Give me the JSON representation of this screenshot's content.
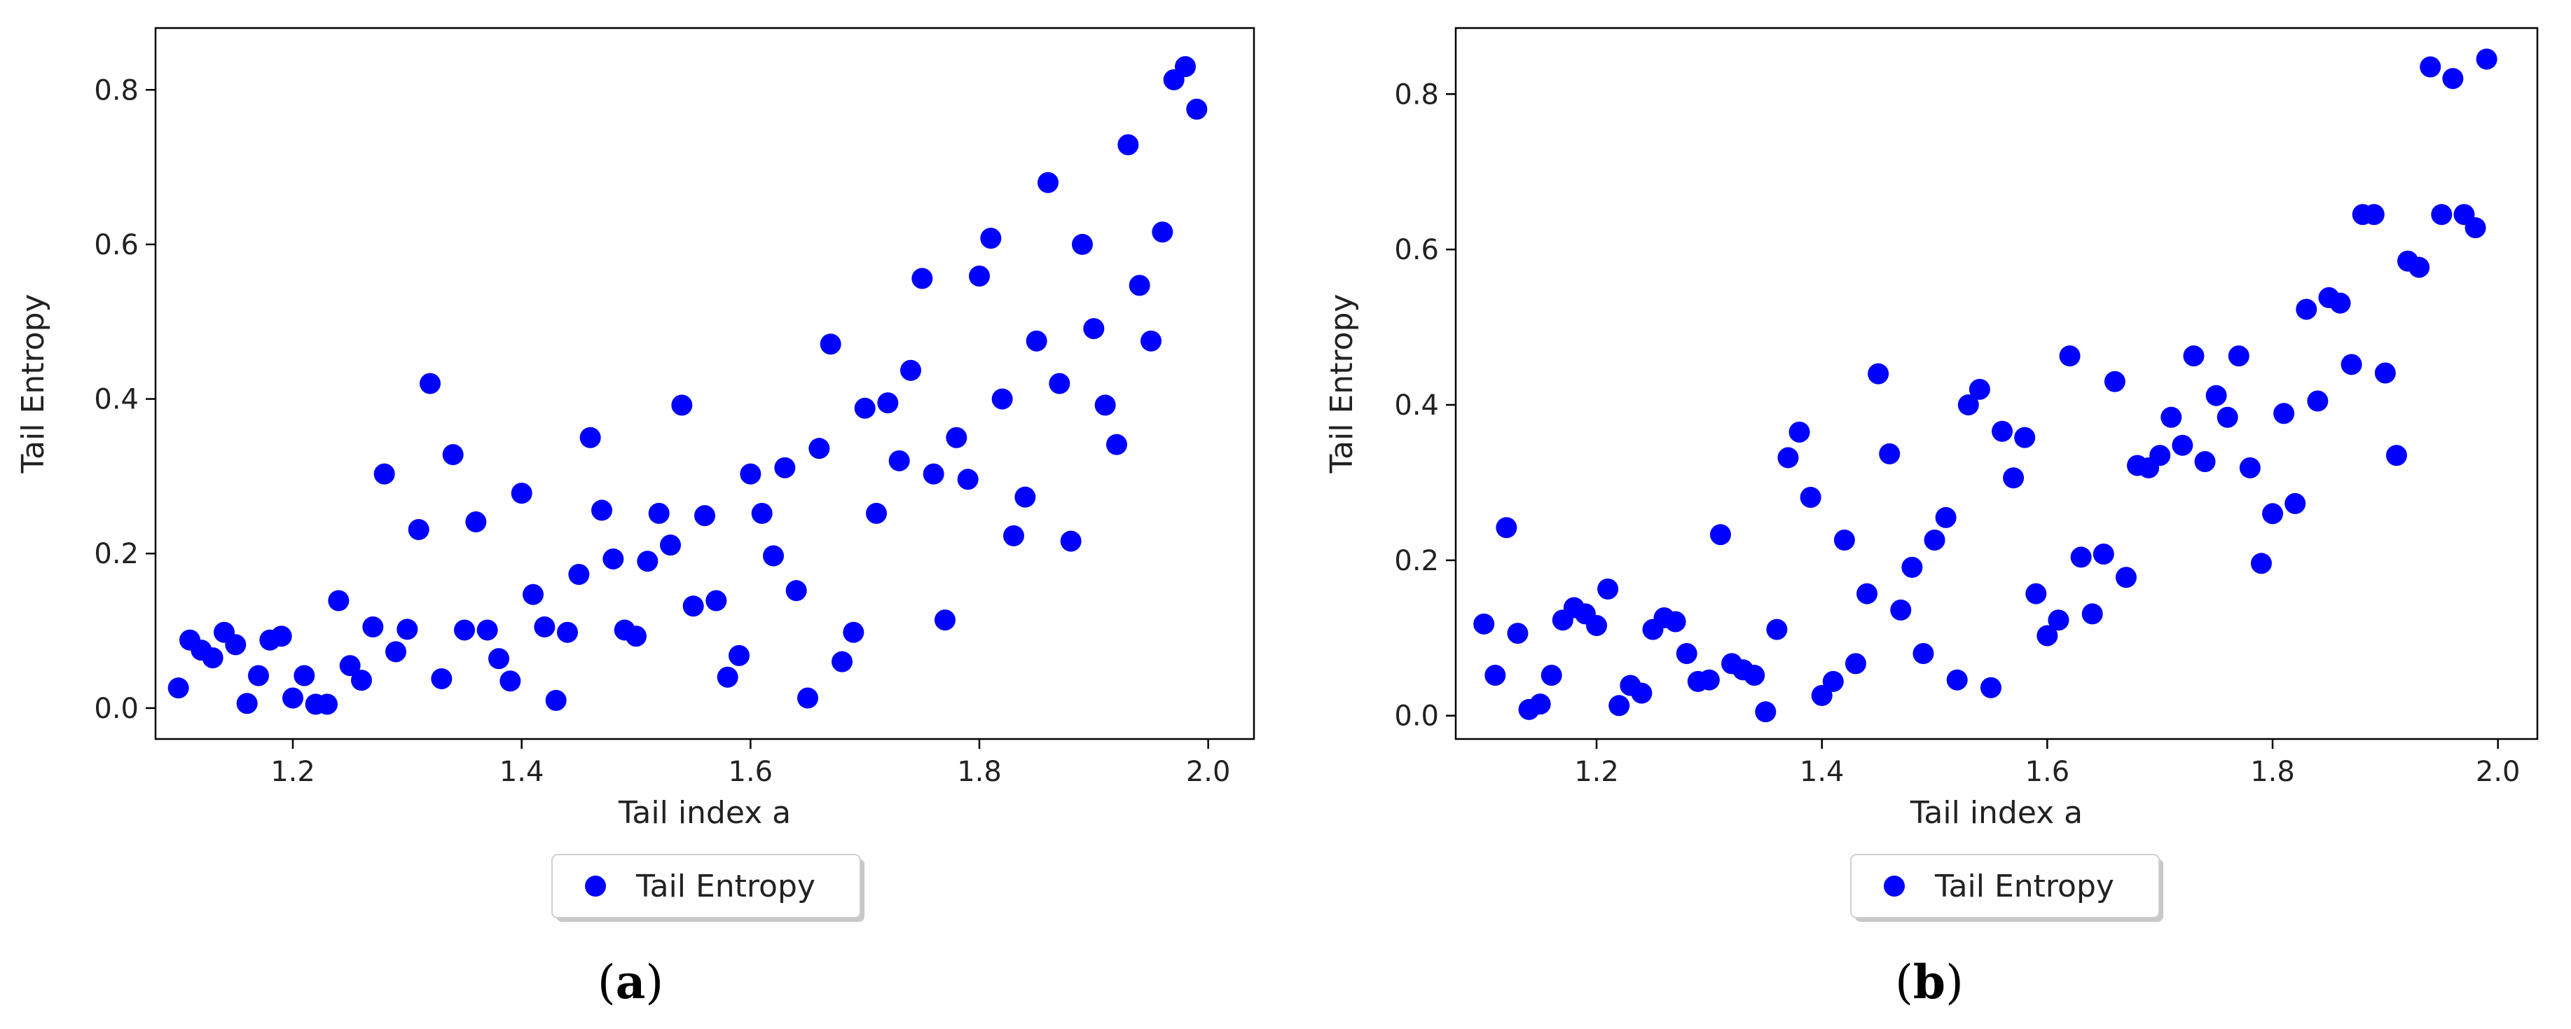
{
  "colors": {
    "marker": "#0000ff",
    "axis": "#000000",
    "text": "#222222",
    "background": "#ffffff"
  },
  "chart_data": [
    {
      "type": "scatter",
      "caption": {
        "open": "(",
        "letter": "a",
        "close": ")"
      },
      "xlabel": "Tail index a",
      "ylabel": "Tail Entropy",
      "xlim": [
        1.08,
        2.04
      ],
      "ylim": [
        -0.04,
        0.88
      ],
      "xticks": [
        1.2,
        1.4,
        1.6,
        1.8,
        2.0
      ],
      "xtick_labels": [
        "1.2",
        "1.4",
        "1.6",
        "1.8",
        "2.0"
      ],
      "yticks": [
        0.0,
        0.2,
        0.4,
        0.6,
        0.8
      ],
      "ytick_labels": [
        "0.0",
        "0.2",
        "0.4",
        "0.6",
        "0.8"
      ],
      "legend": {
        "label": "Tail Entropy",
        "placement": "bottom-center"
      },
      "series": [
        {
          "name": "Tail Entropy",
          "x": [
            1.1,
            1.11,
            1.12,
            1.13,
            1.14,
            1.15,
            1.16,
            1.17,
            1.18,
            1.19,
            1.2,
            1.21,
            1.22,
            1.23,
            1.24,
            1.25,
            1.26,
            1.27,
            1.28,
            1.29,
            1.3,
            1.31,
            1.32,
            1.33,
            1.34,
            1.35,
            1.36,
            1.37,
            1.38,
            1.39,
            1.4,
            1.41,
            1.42,
            1.43,
            1.44,
            1.45,
            1.46,
            1.47,
            1.48,
            1.49,
            1.5,
            1.51,
            1.52,
            1.53,
            1.54,
            1.55,
            1.56,
            1.57,
            1.58,
            1.59,
            1.6,
            1.61,
            1.62,
            1.63,
            1.64,
            1.65,
            1.66,
            1.67,
            1.68,
            1.69,
            1.7,
            1.71,
            1.72,
            1.73,
            1.74,
            1.75,
            1.76,
            1.77,
            1.78,
            1.79,
            1.8,
            1.81,
            1.82,
            1.83,
            1.84,
            1.85,
            1.86,
            1.87,
            1.88,
            1.89,
            1.9,
            1.91,
            1.92,
            1.93,
            1.94,
            1.95,
            1.96,
            1.97,
            1.98,
            1.99
          ],
          "y": [
            0.026,
            0.088,
            0.075,
            0.065,
            0.098,
            0.082,
            0.006,
            0.042,
            0.088,
            0.093,
            0.013,
            0.042,
            0.005,
            0.005,
            0.139,
            0.055,
            0.036,
            0.105,
            0.303,
            0.073,
            0.102,
            0.231,
            0.42,
            0.038,
            0.328,
            0.101,
            0.241,
            0.101,
            0.064,
            0.035,
            0.278,
            0.147,
            0.105,
            0.01,
            0.098,
            0.173,
            0.35,
            0.256,
            0.193,
            0.101,
            0.093,
            0.19,
            0.252,
            0.211,
            0.392,
            0.132,
            0.249,
            0.139,
            0.04,
            0.068,
            0.303,
            0.252,
            0.197,
            0.311,
            0.152,
            0.013,
            0.336,
            0.471,
            0.06,
            0.098,
            0.388,
            0.252,
            0.395,
            0.32,
            0.437,
            0.556,
            0.303,
            0.114,
            0.35,
            0.296,
            0.559,
            0.608,
            0.4,
            0.223,
            0.273,
            0.475,
            0.68,
            0.42,
            0.216,
            0.6,
            0.491,
            0.392,
            0.341,
            0.729,
            0.547,
            0.475,
            0.616,
            0.813,
            0.83,
            0.775
          ]
        }
      ]
    },
    {
      "type": "scatter",
      "caption": {
        "open": "(",
        "letter": "b",
        "close": ")"
      },
      "xlabel": "Tail index a",
      "ylabel": "Tail Entropy",
      "xlim": [
        1.075,
        2.035
      ],
      "ylim": [
        -0.03,
        0.885
      ],
      "xticks": [
        1.2,
        1.4,
        1.6,
        1.8,
        2.0
      ],
      "xtick_labels": [
        "1.2",
        "1.4",
        "1.6",
        "1.8",
        "2.0"
      ],
      "yticks": [
        0.0,
        0.2,
        0.4,
        0.6,
        0.8
      ],
      "ytick_labels": [
        "0.0",
        "0.2",
        "0.4",
        "0.6",
        "0.8"
      ],
      "legend": {
        "label": "Tail Entropy",
        "placement": "bottom-center"
      },
      "series": [
        {
          "name": "Tail Entropy",
          "x": [
            1.1,
            1.11,
            1.12,
            1.13,
            1.14,
            1.15,
            1.16,
            1.17,
            1.18,
            1.19,
            1.2,
            1.21,
            1.22,
            1.23,
            1.24,
            1.25,
            1.26,
            1.27,
            1.28,
            1.29,
            1.3,
            1.31,
            1.32,
            1.33,
            1.34,
            1.35,
            1.36,
            1.37,
            1.38,
            1.39,
            1.4,
            1.41,
            1.42,
            1.43,
            1.44,
            1.45,
            1.46,
            1.47,
            1.48,
            1.49,
            1.5,
            1.51,
            1.52,
            1.53,
            1.54,
            1.55,
            1.56,
            1.57,
            1.58,
            1.59,
            1.6,
            1.61,
            1.62,
            1.63,
            1.64,
            1.65,
            1.66,
            1.67,
            1.68,
            1.69,
            1.7,
            1.71,
            1.72,
            1.73,
            1.74,
            1.75,
            1.76,
            1.77,
            1.78,
            1.79,
            1.8,
            1.81,
            1.82,
            1.83,
            1.84,
            1.85,
            1.86,
            1.87,
            1.88,
            1.89,
            1.9,
            1.91,
            1.92,
            1.93,
            1.94,
            1.95,
            1.96,
            1.97,
            1.98,
            1.99
          ],
          "y": [
            0.118,
            0.052,
            0.242,
            0.106,
            0.008,
            0.015,
            0.052,
            0.123,
            0.139,
            0.131,
            0.116,
            0.163,
            0.013,
            0.039,
            0.029,
            0.111,
            0.126,
            0.121,
            0.08,
            0.044,
            0.046,
            0.233,
            0.067,
            0.059,
            0.052,
            0.005,
            0.111,
            0.332,
            0.365,
            0.281,
            0.026,
            0.044,
            0.226,
            0.067,
            0.157,
            0.44,
            0.337,
            0.136,
            0.191,
            0.08,
            0.226,
            0.255,
            0.046,
            0.4,
            0.42,
            0.036,
            0.366,
            0.306,
            0.358,
            0.157,
            0.103,
            0.123,
            0.463,
            0.204,
            0.131,
            0.208,
            0.43,
            0.178,
            0.322,
            0.319,
            0.335,
            0.384,
            0.348,
            0.463,
            0.327,
            0.412,
            0.384,
            0.463,
            0.319,
            0.196,
            0.26,
            0.389,
            0.273,
            0.523,
            0.405,
            0.538,
            0.531,
            0.452,
            0.645,
            0.645,
            0.441,
            0.335,
            0.585,
            0.577,
            0.835,
            0.645,
            0.82,
            0.645,
            0.628,
            0.845
          ]
        }
      ]
    }
  ]
}
